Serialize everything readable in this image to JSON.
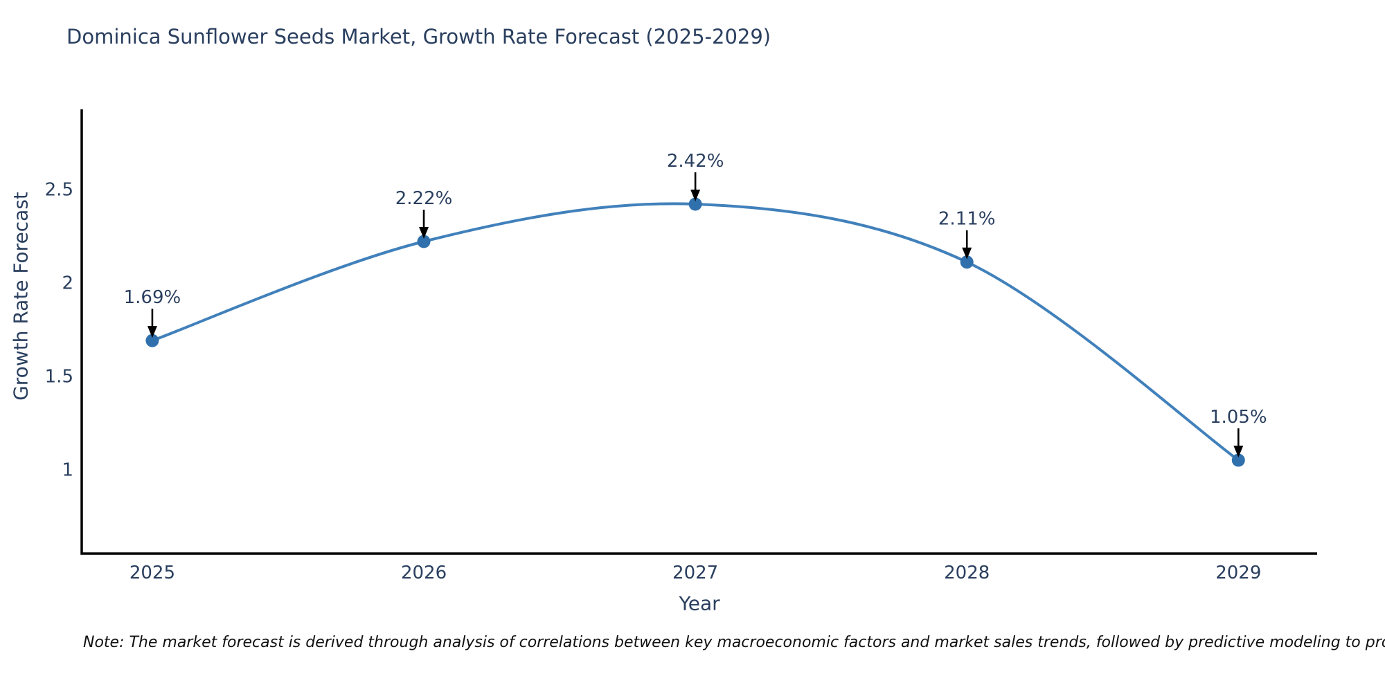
{
  "title": "Dominica Sunflower Seeds Market, Growth Rate Forecast (2025-2029)",
  "note": "Note: The market forecast is derived through analysis of correlations between key macroeconomic factors and market sales trends, followed by predictive modeling to project future sales",
  "chart_data": {
    "type": "line",
    "title": "Dominica Sunflower Seeds Market, Growth Rate Forecast (2025-2029)",
    "xlabel": "Year",
    "ylabel": "Growth Rate Forecast",
    "x": [
      2025,
      2026,
      2027,
      2028,
      2029
    ],
    "categories": [
      "2025",
      "2026",
      "2027",
      "2028",
      "2029"
    ],
    "series": [
      {
        "name": "Growth Rate Forecast",
        "values": [
          1.69,
          2.22,
          2.42,
          2.11,
          1.05
        ]
      }
    ],
    "point_labels": [
      "1.69%",
      "2.22%",
      "2.42%",
      "2.11%",
      "1.05%"
    ],
    "yticks": [
      1,
      1.5,
      2,
      2.5
    ],
    "ytick_labels": [
      "1",
      "1.5",
      "2",
      "2.5"
    ],
    "ylim": [
      0.55,
      2.92
    ],
    "xlim": [
      2024.74,
      2029.29
    ],
    "line_shape": "spline",
    "grid": false,
    "legend": "none",
    "annotation_arrows": true,
    "colors": {
      "line": "#4181bb",
      "marker": "#3071ad",
      "arrow": "#000000",
      "axis": "#000000",
      "text": "#2a3f5f",
      "note_text": "#111111"
    }
  }
}
